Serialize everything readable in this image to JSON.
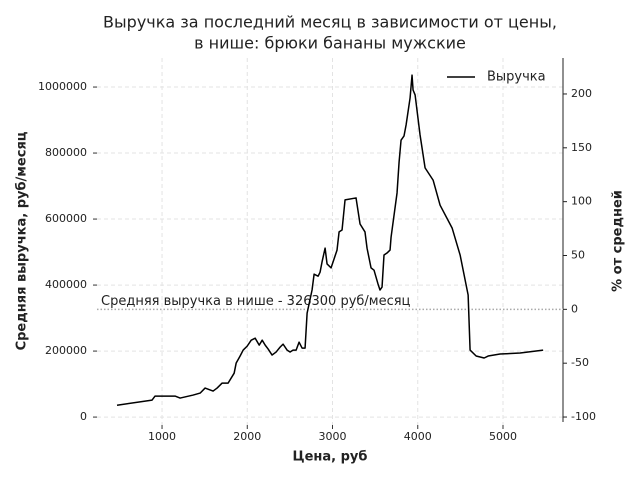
{
  "chart_data": {
    "type": "line",
    "title": [
      "Выручка за последний месяц в зависимости от цены,",
      "в нише: брюки бананы мужские"
    ],
    "x_label": "Цена, руб",
    "y_label": "Средняя выручка, руб/месяц",
    "y2_label": "% от средней",
    "x": [
      472,
      883,
      918,
      1153,
      1212,
      1365,
      1447,
      1505,
      1599,
      1646,
      1705,
      1775,
      1846,
      1870,
      1916,
      1952,
      1999,
      2046,
      2093,
      2140,
      2175,
      2210,
      2245,
      2291,
      2338,
      2385,
      2420,
      2467,
      2502,
      2537,
      2573,
      2608,
      2643,
      2678,
      2702,
      2760,
      2784,
      2831,
      2854,
      2877,
      2913,
      2936,
      2983,
      3053,
      3077,
      3112,
      3147,
      3276,
      3323,
      3381,
      3405,
      3452,
      3487,
      3534,
      3557,
      3581,
      3604,
      3639,
      3675,
      3687,
      3757,
      3781,
      3804,
      3839,
      3863,
      3910,
      3933,
      3945,
      3969,
      4027,
      4086,
      4180,
      4262,
      4403,
      4497,
      4591,
      4614,
      4685,
      4779,
      4826,
      4966,
      5201,
      5471
    ],
    "series": [
      {
        "name": "Выручка",
        "color": "#000000",
        "values": [
          36000,
          51500,
          63600,
          63600,
          57600,
          66700,
          72700,
          87900,
          78800,
          87900,
          103000,
          103000,
          133000,
          164000,
          185000,
          203000,
          215000,
          233000,
          239000,
          218000,
          233000,
          218000,
          206000,
          188000,
          197000,
          212000,
          221000,
          203000,
          197000,
          203000,
          203000,
          227000,
          209000,
          209000,
          315000,
          385000,
          433000,
          427000,
          439000,
          470000,
          512000,
          464000,
          452000,
          506000,
          561000,
          567000,
          658000,
          664000,
          585000,
          561000,
          512000,
          452000,
          445000,
          403000,
          385000,
          394000,
          491000,
          497000,
          506000,
          545000,
          679000,
          773000,
          839000,
          852000,
          885000,
          967000,
          1036000,
          991000,
          976000,
          855000,
          755000,
          718000,
          642000,
          573000,
          491000,
          370000,
          203000,
          185000,
          179000,
          185000,
          191000,
          194000,
          203000
        ]
      }
    ],
    "hline": {
      "value": 326300,
      "label": "Средняя выручка в нише - 326300 руб/месяц",
      "color": "#aaaaaa"
    },
    "xlim": [
      237,
      5704
    ],
    "xticks": [
      1000,
      2000,
      3000,
      4000,
      5000
    ],
    "ylim": [
      -24000,
      1088000
    ],
    "yticks": [
      0,
      200000,
      400000,
      600000,
      800000,
      1000000
    ],
    "y2lim": [
      -107.4,
      233.4
    ],
    "y2ticks": [
      -100,
      -50,
      0,
      50,
      100,
      150,
      200
    ],
    "grid": true,
    "legend": "upper right"
  }
}
